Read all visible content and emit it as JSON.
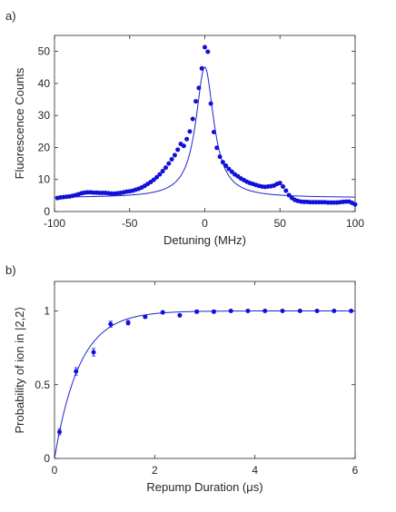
{
  "chart_data": [
    {
      "panel_label": "a)",
      "type": "scatter",
      "xlabel": "Detuning (MHz)",
      "ylabel": "Fluorescence Counts",
      "xlim": [
        -100,
        100
      ],
      "ylim": [
        0,
        55
      ],
      "xticks": [
        -100,
        -50,
        0,
        50,
        100
      ],
      "yticks": [
        0,
        10,
        20,
        30,
        40,
        50
      ],
      "grid": false,
      "legend": "none",
      "series": [
        {
          "kind": "points",
          "x": [
            -98,
            -96,
            -94,
            -92,
            -90,
            -88,
            -86,
            -84,
            -82,
            -80,
            -78,
            -76,
            -74,
            -72,
            -70,
            -68,
            -66,
            -64,
            -62,
            -60,
            -58,
            -56,
            -54,
            -52,
            -50,
            -48,
            -46,
            -44,
            -42,
            -40,
            -38,
            -36,
            -34,
            -32,
            -30,
            -28,
            -26,
            -24,
            -22,
            -20,
            -18,
            -16,
            -14,
            -12,
            -10,
            -8,
            -6,
            -4,
            -2,
            0,
            2,
            4,
            6,
            8,
            10,
            12,
            14,
            16,
            18,
            20,
            22,
            24,
            26,
            28,
            30,
            32,
            34,
            36,
            38,
            40,
            42,
            44,
            46,
            48,
            50,
            52,
            54,
            56,
            58,
            60,
            62,
            64,
            66,
            68,
            70,
            72,
            74,
            76,
            78,
            80,
            82,
            84,
            86,
            88,
            90,
            92,
            94,
            96,
            98,
            100
          ],
          "y": [
            4.2,
            4.4,
            4.5,
            4.6,
            4.7,
            4.9,
            5.1,
            5.4,
            5.7,
            5.9,
            6.0,
            6.0,
            5.9,
            5.9,
            5.8,
            5.8,
            5.8,
            5.7,
            5.6,
            5.6,
            5.7,
            5.8,
            6.0,
            6.2,
            6.3,
            6.5,
            6.8,
            7.1,
            7.5,
            8.0,
            8.6,
            9.2,
            9.9,
            10.7,
            11.6,
            12.6,
            13.7,
            15.0,
            16.3,
            17.6,
            19.3,
            21.1,
            20.5,
            22.6,
            25.0,
            28.9,
            34.4,
            38.6,
            44.7,
            51.3,
            49.9,
            33.7,
            24.8,
            19.9,
            17.1,
            15.4,
            14.3,
            13.3,
            12.4,
            11.6,
            11.0,
            10.3,
            9.8,
            9.3,
            8.9,
            8.6,
            8.3,
            8.0,
            7.8,
            7.7,
            7.8,
            7.9,
            8.1,
            8.6,
            8.9,
            7.8,
            6.5,
            5.1,
            4.2,
            3.6,
            3.3,
            3.1,
            3.0,
            3.0,
            2.9,
            2.9,
            2.9,
            2.9,
            2.9,
            2.9,
            2.8,
            2.8,
            2.8,
            2.8,
            2.9,
            3.0,
            3.1,
            3.1,
            2.7,
            2.2
          ]
        },
        {
          "kind": "fit",
          "x0": 0,
          "amplitude": 40.8,
          "gamma": 7.2,
          "offset": 4.3
        }
      ]
    },
    {
      "panel_label": "b)",
      "type": "scatter",
      "xlabel": "Repump Duration (μs)",
      "ylabel": "Probability of ion in |2,2⟩",
      "xlim": [
        0,
        6
      ],
      "ylim": [
        0,
        1.2
      ],
      "xticks": [
        0,
        2,
        4,
        6
      ],
      "yticks": [
        0,
        0.5,
        1
      ],
      "ytick_labels": [
        "0",
        "0.5",
        "1"
      ],
      "grid": false,
      "legend": "none",
      "series": [
        {
          "kind": "points_with_errorbars",
          "x": [
            0.1,
            0.43,
            0.78,
            1.12,
            1.47,
            1.81,
            2.16,
            2.5,
            2.84,
            3.18,
            3.52,
            3.86,
            4.2,
            4.55,
            4.9,
            5.24,
            5.58,
            5.92
          ],
          "y": [
            0.18,
            0.59,
            0.72,
            0.91,
            0.92,
            0.96,
            0.99,
            0.97,
            0.995,
            0.995,
            1.0,
            1.0,
            1.0,
            1.0,
            1.0,
            1.0,
            1.0,
            1.0
          ],
          "yerr": [
            0.02,
            0.025,
            0.025,
            0.02,
            0.015,
            0.01,
            0.01,
            0.01,
            0.01,
            0.01,
            0.005,
            0.005,
            0.005,
            0.005,
            0.005,
            0.005,
            0.005,
            0.005
          ]
        },
        {
          "kind": "fit",
          "asymptote": 1.0,
          "tau": 0.5
        }
      ]
    }
  ],
  "colors": {
    "data": "#1010d8",
    "fit": "#2222cc",
    "axis": "#262626"
  }
}
